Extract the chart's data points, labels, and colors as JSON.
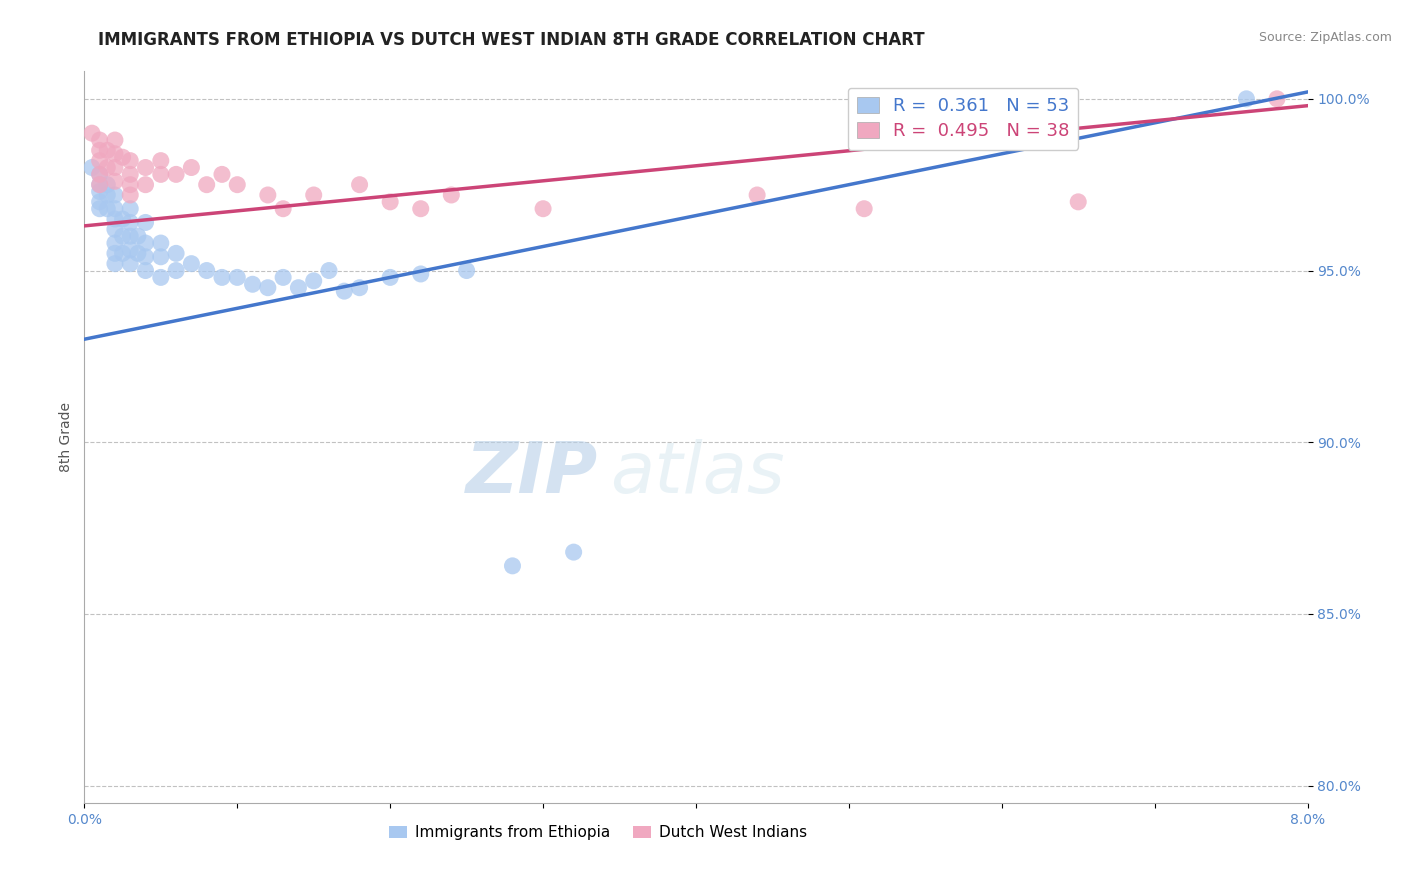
{
  "title": "IMMIGRANTS FROM ETHIOPIA VS DUTCH WEST INDIAN 8TH GRADE CORRELATION CHART",
  "source": "Source: ZipAtlas.com",
  "ylabel": "8th Grade",
  "x_min": 0.0,
  "x_max": 0.08,
  "y_min": 0.795,
  "y_max": 1.008,
  "x_ticks": [
    0.0,
    0.01,
    0.02,
    0.03,
    0.04,
    0.05,
    0.06,
    0.07,
    0.08
  ],
  "x_tick_labels_show": [
    "0.0%",
    "",
    "",
    "",
    "",
    "",
    "",
    "",
    "8.0%"
  ],
  "y_ticks": [
    0.8,
    0.85,
    0.9,
    0.95,
    1.0
  ],
  "y_tick_labels": [
    "80.0%",
    "85.0%",
    "90.0%",
    "95.0%",
    "100.0%"
  ],
  "blue_color": "#a8c8f0",
  "pink_color": "#f0a8c0",
  "blue_line_color": "#4477cc",
  "pink_line_color": "#cc4477",
  "legend_blue_label": "R =  0.361   N = 53",
  "legend_pink_label": "R =  0.495   N = 38",
  "watermark_zip": "ZIP",
  "watermark_atlas": "atlas",
  "legend_label_ethiopia": "Immigrants from Ethiopia",
  "legend_label_dutch": "Dutch West Indians",
  "blue_x": [
    0.0005,
    0.001,
    0.001,
    0.001,
    0.001,
    0.001,
    0.0015,
    0.0015,
    0.0015,
    0.002,
    0.002,
    0.002,
    0.002,
    0.002,
    0.002,
    0.002,
    0.0025,
    0.0025,
    0.0025,
    0.003,
    0.003,
    0.003,
    0.003,
    0.003,
    0.0035,
    0.0035,
    0.004,
    0.004,
    0.004,
    0.004,
    0.005,
    0.005,
    0.005,
    0.006,
    0.006,
    0.007,
    0.008,
    0.009,
    0.01,
    0.011,
    0.012,
    0.013,
    0.014,
    0.015,
    0.016,
    0.017,
    0.018,
    0.02,
    0.022,
    0.025,
    0.028,
    0.032,
    0.076
  ],
  "blue_y": [
    0.98,
    0.978,
    0.975,
    0.973,
    0.97,
    0.968,
    0.975,
    0.972,
    0.968,
    0.972,
    0.968,
    0.965,
    0.962,
    0.958,
    0.955,
    0.952,
    0.965,
    0.96,
    0.955,
    0.968,
    0.964,
    0.96,
    0.956,
    0.952,
    0.96,
    0.955,
    0.964,
    0.958,
    0.954,
    0.95,
    0.958,
    0.954,
    0.948,
    0.955,
    0.95,
    0.952,
    0.95,
    0.948,
    0.948,
    0.946,
    0.945,
    0.948,
    0.945,
    0.947,
    0.95,
    0.944,
    0.945,
    0.948,
    0.949,
    0.95,
    0.864,
    0.868,
    1.0
  ],
  "pink_x": [
    0.0005,
    0.001,
    0.001,
    0.001,
    0.001,
    0.001,
    0.0015,
    0.0015,
    0.002,
    0.002,
    0.002,
    0.002,
    0.0025,
    0.003,
    0.003,
    0.003,
    0.003,
    0.004,
    0.004,
    0.005,
    0.005,
    0.006,
    0.007,
    0.008,
    0.009,
    0.01,
    0.012,
    0.013,
    0.015,
    0.018,
    0.02,
    0.022,
    0.024,
    0.03,
    0.044,
    0.051,
    0.065,
    0.078
  ],
  "pink_y": [
    0.99,
    0.988,
    0.985,
    0.982,
    0.978,
    0.975,
    0.985,
    0.98,
    0.988,
    0.984,
    0.98,
    0.976,
    0.983,
    0.982,
    0.978,
    0.975,
    0.972,
    0.98,
    0.975,
    0.982,
    0.978,
    0.978,
    0.98,
    0.975,
    0.978,
    0.975,
    0.972,
    0.968,
    0.972,
    0.975,
    0.97,
    0.968,
    0.972,
    0.968,
    0.972,
    0.968,
    0.97,
    1.0
  ],
  "blue_line_x0": 0.0,
  "blue_line_x1": 0.08,
  "blue_line_y0": 0.93,
  "blue_line_y1": 1.002,
  "pink_line_x0": 0.0,
  "pink_line_x1": 0.08,
  "pink_line_y0": 0.963,
  "pink_line_y1": 0.998,
  "grid_color": "#bbbbbb",
  "background_color": "#ffffff",
  "title_fontsize": 12,
  "axis_fontsize": 10,
  "tick_fontsize": 10,
  "tick_color": "#5588cc",
  "watermark_fontsize_zip": 52,
  "watermark_fontsize_atlas": 52
}
